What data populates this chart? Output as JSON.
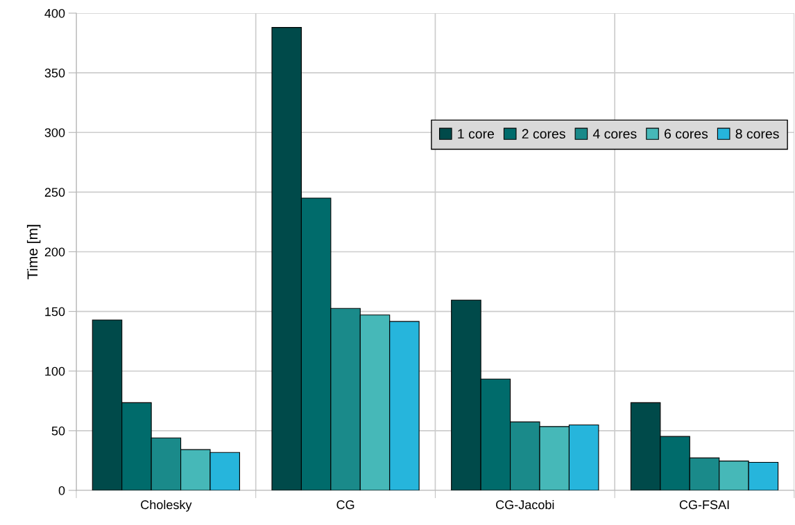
{
  "chart_data": {
    "type": "bar",
    "ylabel": "Time [m]",
    "categories": [
      "Cholesky",
      "CG",
      "CG-Jacobi",
      "CG-FSAI"
    ],
    "series": [
      {
        "name": "1 core",
        "color": "#004a4a",
        "values": [
          142.8,
          388,
          159.5,
          73.5
        ]
      },
      {
        "name": "2 cores",
        "color": "#006b6b",
        "values": [
          73.5,
          245,
          93.3,
          45.2
        ]
      },
      {
        "name": "4 cores",
        "color": "#1a8a8a",
        "values": [
          44,
          152.5,
          57.4,
          27.2
        ]
      },
      {
        "name": "6 cores",
        "color": "#46b8b8",
        "values": [
          34.2,
          147,
          53.5,
          24.6
        ]
      },
      {
        "name": "8 cores",
        "color": "#26b5dc",
        "values": [
          31.8,
          141.6,
          54.9,
          23.5
        ]
      }
    ],
    "ylim": [
      0,
      400
    ],
    "yticks": [
      0,
      50,
      100,
      150,
      200,
      250,
      300,
      350,
      400
    ],
    "grid": true,
    "legend": "top right"
  }
}
